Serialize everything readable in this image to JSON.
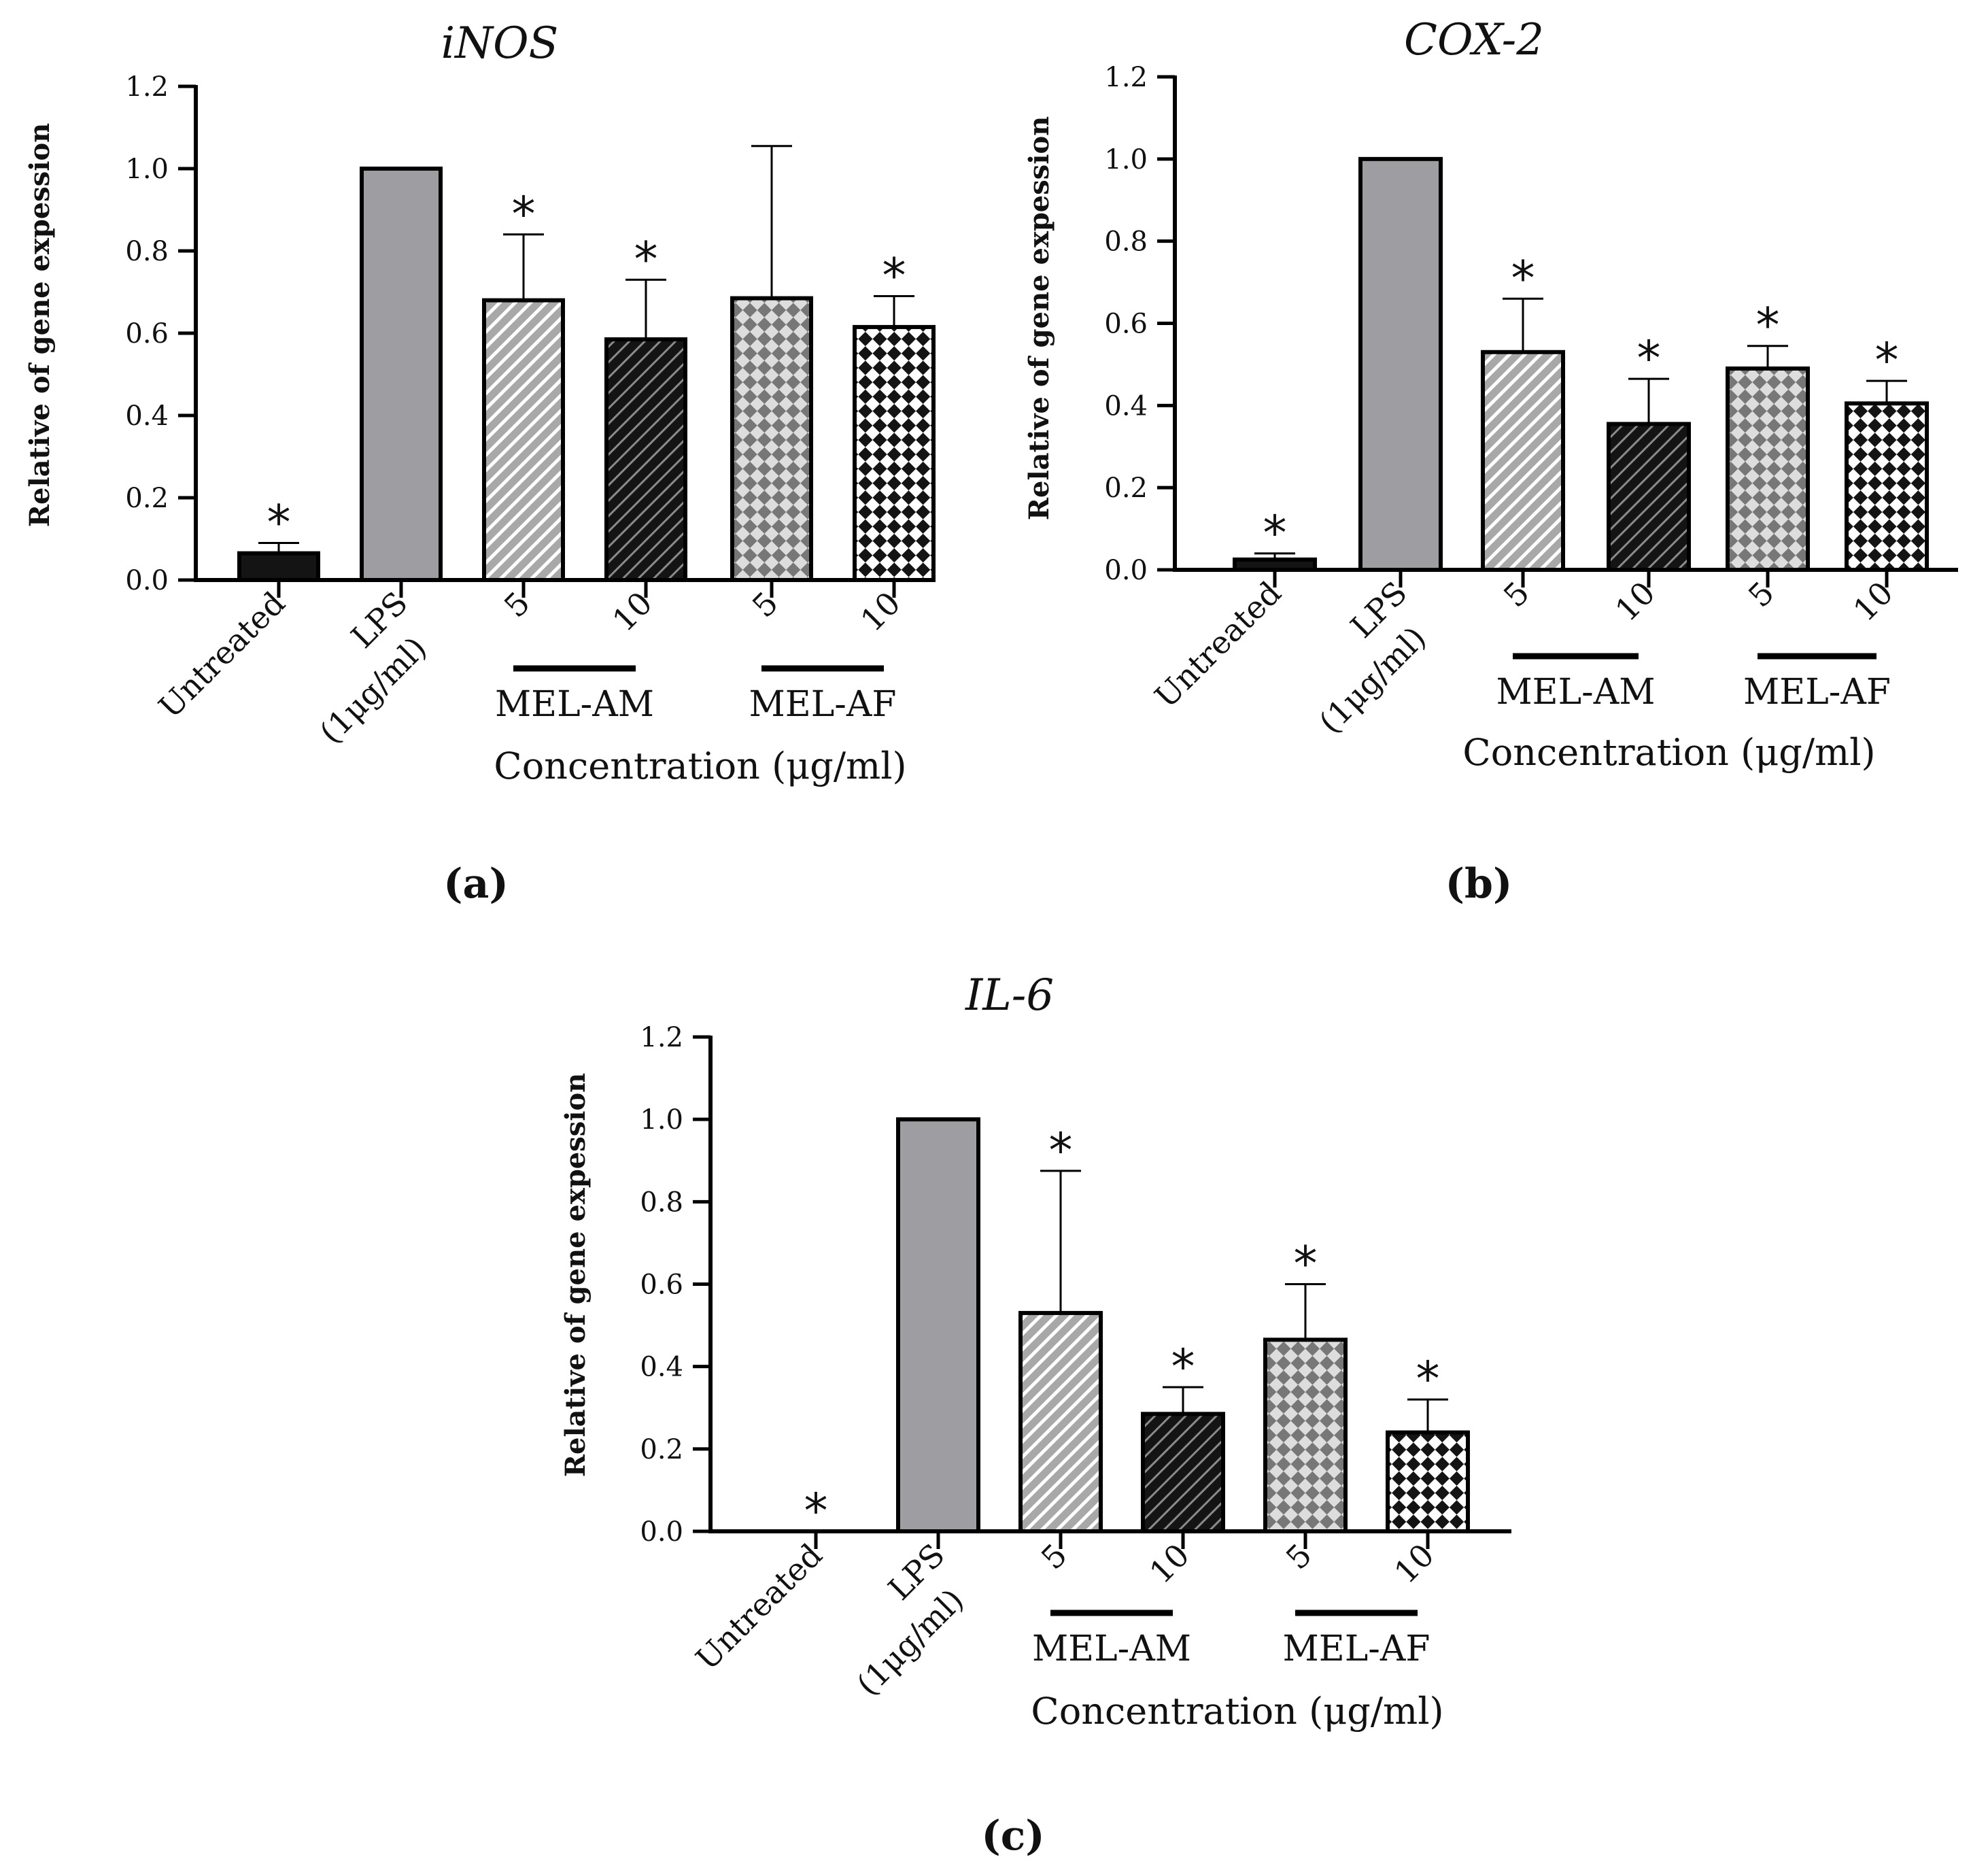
{
  "colors": {
    "black": "#141414",
    "lps_grey": "#9e9ea2",
    "stripe_light": "#a8a8a8",
    "check_grey": "#777777",
    "check_light": "#dddddd",
    "white": "#ffffff"
  },
  "chart_data": [
    {
      "id": "a",
      "type": "bar",
      "title": "iNOS",
      "panel_label": "(a)",
      "ylabel": "Relative of gene expession",
      "xlabel": "Concentration (μg/ml)",
      "ylim": [
        0,
        1.2
      ],
      "yticks": [
        "0.0",
        "0.2",
        "0.4",
        "0.6",
        "0.8",
        "1.0",
        "1.2"
      ],
      "categories": [
        "Untreated",
        "LPS",
        "5",
        "10",
        "5",
        "10"
      ],
      "lps_sublabel": "(1μg/ml)",
      "groups": [
        {
          "label": "MEL-AM",
          "members": [
            2,
            3
          ]
        },
        {
          "label": "MEL-AF",
          "members": [
            4,
            5
          ]
        }
      ],
      "values": [
        0.065,
        1.0,
        0.68,
        0.585,
        0.685,
        0.615
      ],
      "errors": [
        0.025,
        0.0,
        0.16,
        0.145,
        0.37,
        0.075
      ],
      "significance": [
        "*",
        "",
        "*",
        "*",
        "",
        "*"
      ],
      "patterns": [
        "solid-black",
        "solid-grey",
        "stripe-grey",
        "stripe-black",
        "check-grey",
        "check-black"
      ]
    },
    {
      "id": "b",
      "type": "bar",
      "title": "COX-2",
      "panel_label": "(b)",
      "ylabel": "Relative of gene expession",
      "xlabel": "Concentration (μg/ml)",
      "ylim": [
        0,
        1.2
      ],
      "yticks": [
        "0.0",
        "0.2",
        "0.4",
        "0.6",
        "0.8",
        "1.0",
        "1.2"
      ],
      "categories": [
        "Untreated",
        "LPS",
        "5",
        "10",
        "5",
        "10"
      ],
      "lps_sublabel": "(1μg/ml)",
      "groups": [
        {
          "label": "MEL-AM",
          "members": [
            2,
            3
          ]
        },
        {
          "label": "MEL-AF",
          "members": [
            4,
            5
          ]
        }
      ],
      "values": [
        0.025,
        1.0,
        0.53,
        0.355,
        0.49,
        0.405
      ],
      "errors": [
        0.015,
        0.0,
        0.13,
        0.11,
        0.055,
        0.055
      ],
      "significance": [
        "*",
        "",
        "*",
        "*",
        "*",
        "*"
      ],
      "patterns": [
        "solid-black",
        "solid-grey",
        "stripe-grey",
        "stripe-black",
        "check-grey",
        "check-black"
      ]
    },
    {
      "id": "c",
      "type": "bar",
      "title": "IL-6",
      "panel_label": "(c)",
      "ylabel": "Relative of gene expession",
      "xlabel": "Concentration (μg/ml)",
      "ylim": [
        0,
        1.2
      ],
      "yticks": [
        "0.0",
        "0.2",
        "0.4",
        "0.6",
        "0.8",
        "1.0",
        "1.2"
      ],
      "categories": [
        "Untreated",
        "LPS",
        "5",
        "10",
        "5",
        "10"
      ],
      "lps_sublabel": "(1μg/ml)",
      "groups": [
        {
          "label": "MEL-AM",
          "members": [
            2,
            3
          ]
        },
        {
          "label": "MEL-AF",
          "members": [
            4,
            5
          ]
        }
      ],
      "values": [
        0.0,
        1.0,
        0.53,
        0.285,
        0.465,
        0.24
      ],
      "errors": [
        0.0,
        0.0,
        0.345,
        0.065,
        0.135,
        0.08
      ],
      "significance": [
        "*",
        "",
        "*",
        "*",
        "*",
        "*"
      ],
      "patterns": [
        "solid-black",
        "solid-grey",
        "stripe-grey",
        "stripe-black",
        "check-grey",
        "check-black"
      ]
    }
  ]
}
